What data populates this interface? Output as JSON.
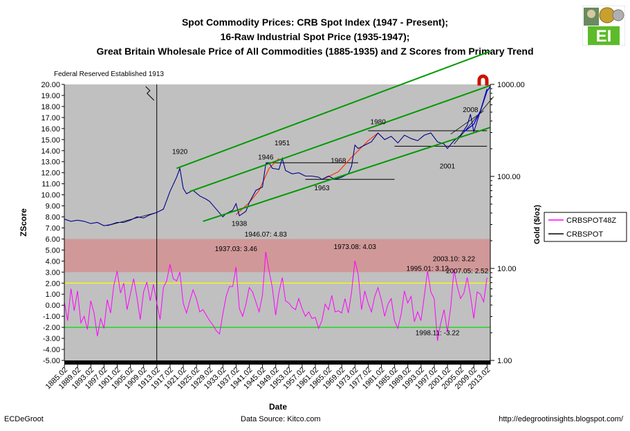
{
  "header": {
    "title_1": "Spot Commodity Prices:  CRB Spot Index (1947 - Present);",
    "title_2": "16-Raw Industrial Spot Price (1935-1947);",
    "title_3": "Great Britain Wholesale Price of All Commodities (1885-1935) and Z Scores from Primary Trend"
  },
  "logo": {
    "text": "EI"
  },
  "footer": {
    "left": "ECDeGroot",
    "center": "Data Source:  Kitco.com",
    "right": "http://edegrootinsights.blogspot.com/"
  },
  "colors": {
    "plot_bg": "#c0c0c0",
    "red_band": "#d09898",
    "price": "#00008b",
    "zscore": "#ff00ff",
    "trend": "#009900",
    "curve_red": "#ff3300",
    "curve_blue": "#0000ff",
    "line_yellow": "#ffff00",
    "line_green": "#00dd00"
  },
  "chart_data": {
    "type": "line",
    "xlabel": "Date",
    "ylabel": "ZScore",
    "y2label": "Gold ($/oz)",
    "ylim": [
      -5,
      20
    ],
    "y2lim_log": [
      1,
      1000
    ],
    "xlim": [
      1885,
      2014
    ],
    "y_ticks": [
      "20.00",
      "19.00",
      "18.00",
      "17.00",
      "16.00",
      "15.00",
      "14.00",
      "13.00",
      "12.00",
      "11.00",
      "10.00",
      "9.00",
      "8.00",
      "7.00",
      "6.00",
      "5.00",
      "4.00",
      "3.00",
      "2.00",
      "1.00",
      "0.00",
      "-1.00",
      "-2.00",
      "-3.00",
      "-4.00",
      "-5.00"
    ],
    "y2_ticks": [
      {
        "label": "1000.00",
        "value": 1000
      },
      {
        "label": "100.00",
        "value": 100
      },
      {
        "label": "10.00",
        "value": 10
      },
      {
        "label": "1.00",
        "value": 1
      }
    ],
    "x_ticks": [
      "1885.02",
      "1889.02",
      "1893.02",
      "1897.02",
      "1901.02",
      "1905.02",
      "1909.02",
      "1913.02",
      "1917.02",
      "1921.02",
      "1925.02",
      "1929.02",
      "1933.02",
      "1937.02",
      "1941.02",
      "1945.02",
      "1949.02",
      "1953.02",
      "1957.02",
      "1961.02",
      "1965.02",
      "1969.02",
      "1973.02",
      "1977.02",
      "1981.02",
      "1985.02",
      "1989.02",
      "1993.02",
      "1997.02",
      "2001.02",
      "2005.02",
      "2009.02",
      "2013.02"
    ],
    "legend": [
      "CRBSPOT48Z",
      "CRBSPOT"
    ],
    "legend_position": "right",
    "red_band": [
      3,
      6
    ],
    "yellow_line": 2,
    "green_line": -2,
    "vline_year": 1913,
    "vline_label": "Federal Reserved Established 1913",
    "series": [
      {
        "name": "CRBSPOT",
        "axis": "left",
        "points": [
          [
            1885,
            7.8
          ],
          [
            1887,
            7.6
          ],
          [
            1889,
            7.7
          ],
          [
            1891,
            7.6
          ],
          [
            1893,
            7.4
          ],
          [
            1895,
            7.5
          ],
          [
            1897,
            7.2
          ],
          [
            1899,
            7.3
          ],
          [
            1901,
            7.5
          ],
          [
            1903,
            7.5
          ],
          [
            1905,
            7.7
          ],
          [
            1907,
            8.0
          ],
          [
            1909,
            7.9
          ],
          [
            1911,
            8.2
          ],
          [
            1913,
            8.4
          ],
          [
            1915,
            8.7
          ],
          [
            1917,
            10.3
          ],
          [
            1919,
            11.6
          ],
          [
            1920,
            12.4
          ],
          [
            1921,
            10.6
          ],
          [
            1922,
            10.1
          ],
          [
            1924,
            10.4
          ],
          [
            1926,
            9.9
          ],
          [
            1928,
            9.6
          ],
          [
            1929,
            9.4
          ],
          [
            1931,
            8.7
          ],
          [
            1933,
            8.0
          ],
          [
            1934,
            8.3
          ],
          [
            1936,
            8.6
          ],
          [
            1937,
            9.2
          ],
          [
            1938,
            8.1
          ],
          [
            1940,
            8.5
          ],
          [
            1941,
            9.3
          ],
          [
            1943,
            10.4
          ],
          [
            1945,
            10.7
          ],
          [
            1946,
            12.8
          ],
          [
            1947,
            12.9
          ],
          [
            1948,
            12.4
          ],
          [
            1950,
            12.3
          ],
          [
            1951,
            13.3
          ],
          [
            1952,
            12.2
          ],
          [
            1954,
            11.9
          ],
          [
            1956,
            12.0
          ],
          [
            1958,
            11.7
          ],
          [
            1960,
            11.7
          ],
          [
            1962,
            11.6
          ],
          [
            1963,
            11.4
          ],
          [
            1965,
            11.7
          ],
          [
            1967,
            11.4
          ],
          [
            1969,
            11.6
          ],
          [
            1971,
            11.9
          ],
          [
            1972,
            12.6
          ],
          [
            1973,
            14.5
          ],
          [
            1974,
            14.2
          ],
          [
            1976,
            14.5
          ],
          [
            1978,
            14.8
          ],
          [
            1980,
            15.6
          ],
          [
            1982,
            15.0
          ],
          [
            1984,
            15.3
          ],
          [
            1986,
            14.7
          ],
          [
            1988,
            15.4
          ],
          [
            1990,
            15.1
          ],
          [
            1992,
            14.9
          ],
          [
            1994,
            15.4
          ],
          [
            1996,
            15.6
          ],
          [
            1998,
            14.8
          ],
          [
            2000,
            14.6
          ],
          [
            2001,
            14.2
          ],
          [
            2003,
            14.9
          ],
          [
            2005,
            15.4
          ],
          [
            2007,
            16.3
          ],
          [
            2008,
            17.3
          ],
          [
            2009,
            15.7
          ],
          [
            2011,
            17.6
          ],
          [
            2013,
            19.6
          ]
        ]
      },
      {
        "name": "CRBSPOT48Z",
        "axis": "left",
        "points": [
          [
            1885,
            0.3
          ],
          [
            1886,
            -1.4
          ],
          [
            1887,
            1.5
          ],
          [
            1888,
            -0.5
          ],
          [
            1889,
            1.3
          ],
          [
            1890,
            -1.6
          ],
          [
            1891,
            -1.0
          ],
          [
            1892,
            -2.2
          ],
          [
            1893,
            0.4
          ],
          [
            1894,
            -0.7
          ],
          [
            1895,
            -2.8
          ],
          [
            1896,
            -1.2
          ],
          [
            1897,
            -2.1
          ],
          [
            1898,
            0.5
          ],
          [
            1899,
            -0.7
          ],
          [
            1900,
            1.8
          ],
          [
            1901,
            3.1
          ],
          [
            1902,
            1.1
          ],
          [
            1903,
            2.0
          ],
          [
            1904,
            -0.4
          ],
          [
            1905,
            1.0
          ],
          [
            1906,
            2.4
          ],
          [
            1907,
            0.7
          ],
          [
            1908,
            -1.3
          ],
          [
            1909,
            1.2
          ],
          [
            1910,
            2.1
          ],
          [
            1911,
            0.4
          ],
          [
            1912,
            1.9
          ],
          [
            1913,
            0.2
          ],
          [
            1914,
            -1.3
          ],
          [
            1915,
            1.6
          ],
          [
            1916,
            2.2
          ],
          [
            1917,
            3.7
          ],
          [
            1918,
            2.4
          ],
          [
            1919,
            2.2
          ],
          [
            1920,
            3.0
          ],
          [
            1921,
            0.2
          ],
          [
            1922,
            -0.7
          ],
          [
            1923,
            0.4
          ],
          [
            1924,
            1.4
          ],
          [
            1925,
            0.6
          ],
          [
            1926,
            -0.6
          ],
          [
            1927,
            -0.4
          ],
          [
            1928,
            -0.9
          ],
          [
            1929,
            -1.4
          ],
          [
            1930,
            -1.8
          ],
          [
            1931,
            -2.3
          ],
          [
            1932,
            -2.6
          ],
          [
            1933,
            -0.8
          ],
          [
            1934,
            0.8
          ],
          [
            1935,
            1.7
          ],
          [
            1936,
            1.7
          ],
          [
            1937,
            3.46
          ],
          [
            1938,
            -0.3
          ],
          [
            1939,
            -1.0
          ],
          [
            1940,
            0.1
          ],
          [
            1941,
            1.6
          ],
          [
            1942,
            1.2
          ],
          [
            1943,
            0.3
          ],
          [
            1944,
            -0.6
          ],
          [
            1945,
            0.9
          ],
          [
            1946,
            4.83
          ],
          [
            1947,
            3.1
          ],
          [
            1948,
            1.6
          ],
          [
            1949,
            -0.9
          ],
          [
            1950,
            1.2
          ],
          [
            1951,
            2.5
          ],
          [
            1952,
            0.4
          ],
          [
            1953,
            0.2
          ],
          [
            1954,
            -0.2
          ],
          [
            1955,
            -0.4
          ],
          [
            1956,
            0.6
          ],
          [
            1957,
            -0.3
          ],
          [
            1958,
            -1.0
          ],
          [
            1959,
            -0.6
          ],
          [
            1960,
            -1.2
          ],
          [
            1961,
            -1.1
          ],
          [
            1962,
            -2.1
          ],
          [
            1963,
            -1.4
          ],
          [
            1964,
            0.1
          ],
          [
            1965,
            -0.4
          ],
          [
            1966,
            0.9
          ],
          [
            1967,
            -0.6
          ],
          [
            1968,
            -0.5
          ],
          [
            1969,
            -0.7
          ],
          [
            1970,
            0.6
          ],
          [
            1971,
            -0.7
          ],
          [
            1972,
            1.2
          ],
          [
            1973,
            4.03
          ],
          [
            1974,
            2.8
          ],
          [
            1975,
            -0.4
          ],
          [
            1976,
            1.3
          ],
          [
            1977,
            0.2
          ],
          [
            1978,
            -0.6
          ],
          [
            1979,
            0.8
          ],
          [
            1980,
            1.6
          ],
          [
            1981,
            0.5
          ],
          [
            1982,
            -1.0
          ],
          [
            1983,
            0.1
          ],
          [
            1984,
            0.6
          ],
          [
            1985,
            -1.4
          ],
          [
            1986,
            -2.1
          ],
          [
            1987,
            -0.8
          ],
          [
            1988,
            1.3
          ],
          [
            1989,
            0.2
          ],
          [
            1990,
            0.8
          ],
          [
            1991,
            -1.5
          ],
          [
            1992,
            -0.6
          ],
          [
            1993,
            -1.4
          ],
          [
            1994,
            0.8
          ],
          [
            1995,
            3.12
          ],
          [
            1996,
            1.2
          ],
          [
            1997,
            0.6
          ],
          [
            1998,
            -3.22
          ],
          [
            1999,
            -1.6
          ],
          [
            2000,
            -0.4
          ],
          [
            2001,
            -2.4
          ],
          [
            2002,
            -0.2
          ],
          [
            2003,
            3.22
          ],
          [
            2004,
            1.7
          ],
          [
            2005,
            0.6
          ],
          [
            2006,
            1.1
          ],
          [
            2007,
            2.52
          ],
          [
            2008,
            0.9
          ],
          [
            2009,
            -1.2
          ],
          [
            2010,
            1.2
          ],
          [
            2011,
            1.0
          ],
          [
            2012,
            0.3
          ],
          [
            2013,
            2.5
          ]
        ]
      }
    ],
    "trend_channels": [
      [
        [
          1919,
          12.4
        ],
        [
          2014,
          23.0
        ]
      ],
      [
        [
          1923,
          10.3
        ],
        [
          2014,
          19.9
        ]
      ],
      [
        [
          1927,
          7.6
        ],
        [
          2014,
          16.1
        ]
      ]
    ],
    "support_lines": [
      [
        [
          1946,
          12.9
        ],
        [
          1974,
          12.9
        ]
      ],
      [
        [
          1958,
          11.4
        ],
        [
          1985,
          11.4
        ]
      ],
      [
        [
          1977,
          15.8
        ],
        [
          2013,
          15.8
        ]
      ],
      [
        [
          1985,
          14.4
        ],
        [
          2013,
          14.4
        ]
      ]
    ],
    "thin_black_lines": [
      [
        [
          1898,
          7.2
        ],
        [
          1913,
          8.4
        ]
      ],
      [
        [
          2002,
          15.5
        ],
        [
          2012,
          17.6
        ]
      ],
      [
        [
          2003,
          14.6
        ],
        [
          2015,
          18.9
        ]
      ]
    ],
    "red_curves": [
      [
        [
          1937,
          8.2
        ],
        [
          1941,
          9.3
        ],
        [
          1944,
          10.4
        ],
        [
          1947,
          12.4
        ],
        [
          1950,
          13.3
        ]
      ],
      [
        [
          1964,
          11.5
        ],
        [
          1968,
          12.1
        ],
        [
          1972,
          13.4
        ],
        [
          1977,
          14.9
        ],
        [
          1980,
          15.6
        ]
      ]
    ],
    "blue_curves": [
      [
        [
          2006,
          15.7
        ],
        [
          2009,
          16.4
        ],
        [
          2011,
          17.6
        ],
        [
          2013,
          19.4
        ],
        [
          2014,
          19.8
        ]
      ]
    ],
    "annotations": [
      {
        "text": "1920",
        "x": 1920,
        "y": 13.7
      },
      {
        "text": "1938",
        "x": 1938,
        "y": 7.2
      },
      {
        "text": "1946",
        "x": 1946,
        "y": 13.2
      },
      {
        "text": "1951",
        "x": 1951,
        "y": 14.5
      },
      {
        "text": "1963",
        "x": 1963,
        "y": 10.4
      },
      {
        "text": "1968",
        "x": 1968,
        "y": 12.9
      },
      {
        "text": "1980",
        "x": 1980,
        "y": 16.4
      },
      {
        "text": "2001",
        "x": 2001,
        "y": 12.4
      },
      {
        "text": "2008",
        "x": 2008,
        "y": 17.5
      },
      {
        "text": "1937.03: 3.46",
        "x": 1937,
        "y": 4.9
      },
      {
        "text": "1946.07: 4.83",
        "x": 1946,
        "y": 6.2
      },
      {
        "text": "1973.08: 4.03",
        "x": 1973,
        "y": 5.1
      },
      {
        "text": "1995.01: 3.12",
        "x": 1995,
        "y": 3.1
      },
      {
        "text": "2003.10: 3.22",
        "x": 2003,
        "y": 4.0
      },
      {
        "text": "2007.05: 2.52",
        "x": 2007,
        "y": 2.9
      },
      {
        "text": "1998.11: -3.22",
        "x": 1998,
        "y": -2.7
      }
    ]
  }
}
